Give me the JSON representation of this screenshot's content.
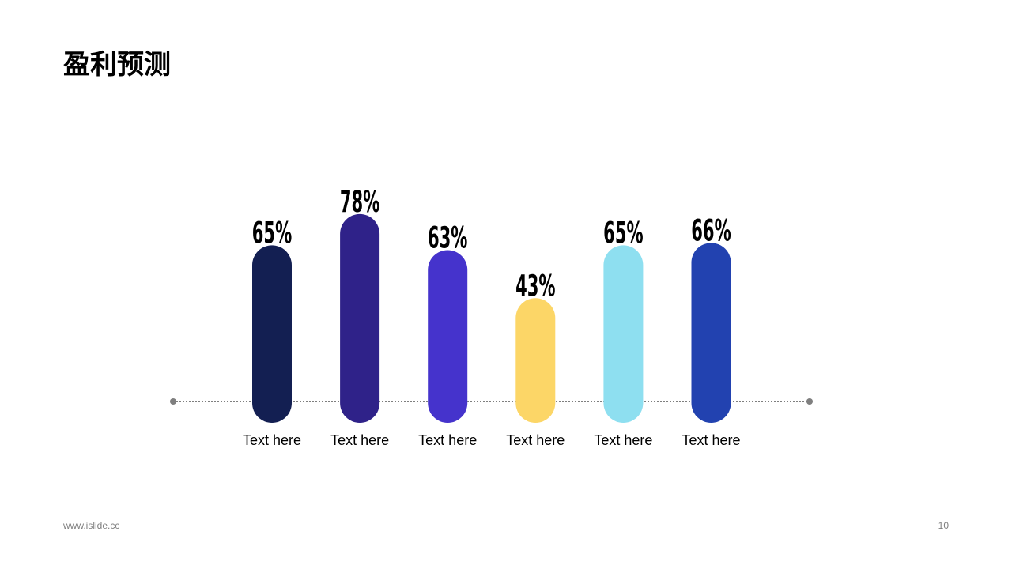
{
  "slide": {
    "title": "盈利预测",
    "footer_url": "www.islide.cc",
    "page_number": "10"
  },
  "chart_data": {
    "type": "bar",
    "categories": [
      "Text here",
      "Text here",
      "Text here",
      "Text here",
      "Text here",
      "Text here"
    ],
    "values": [
      65,
      78,
      63,
      43,
      65,
      66
    ],
    "data_labels": [
      "65%",
      "78%",
      "63%",
      "43%",
      "65%",
      "66%"
    ],
    "colors": [
      "#131f52",
      "#2f2289",
      "#4533cc",
      "#fcd667",
      "#8edff0",
      "#2242b0"
    ],
    "ylim": [
      0,
      100
    ],
    "unit": "%",
    "grid": false,
    "legend": "none",
    "baseline_style": "dotted"
  }
}
